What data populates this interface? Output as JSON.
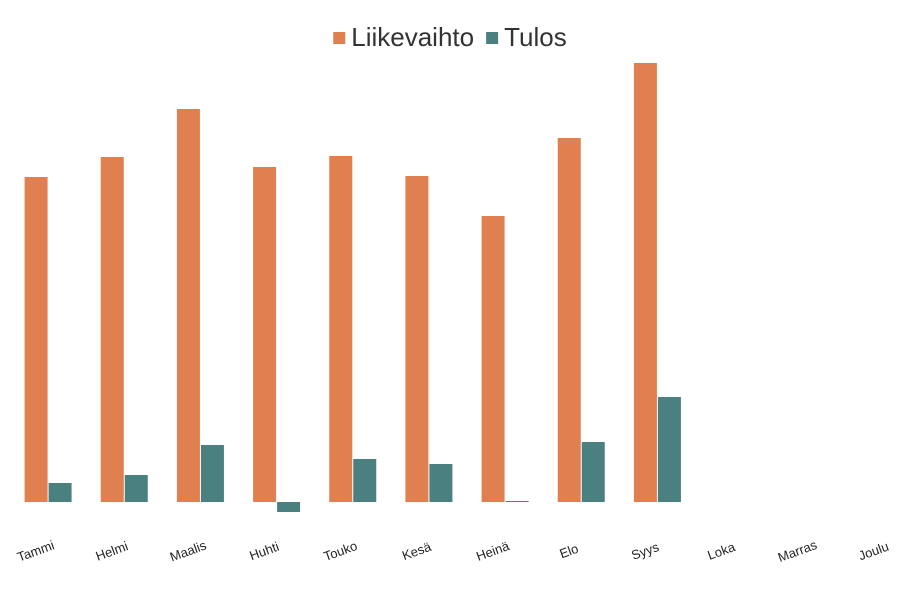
{
  "chart_data": {
    "type": "bar",
    "categories": [
      "Tammi",
      "Helmi",
      "Maalis",
      "Huhti",
      "Touko",
      "Kesä",
      "Heinä",
      "Elo",
      "Syys",
      "Loka",
      "Marras",
      "Joulu"
    ],
    "series": [
      {
        "name": "Liikevaihto",
        "color": "#e07f4f",
        "values": [
          325,
          345,
          393,
          335,
          346,
          326,
          286,
          364,
          439,
          null,
          null,
          null
        ]
      },
      {
        "name": "Tulos",
        "color": "#4a8080",
        "values": [
          19,
          27,
          57,
          -10,
          43,
          38,
          1,
          60,
          105,
          null,
          null,
          null
        ]
      }
    ],
    "ylim": [
      -40,
      462
    ]
  }
}
